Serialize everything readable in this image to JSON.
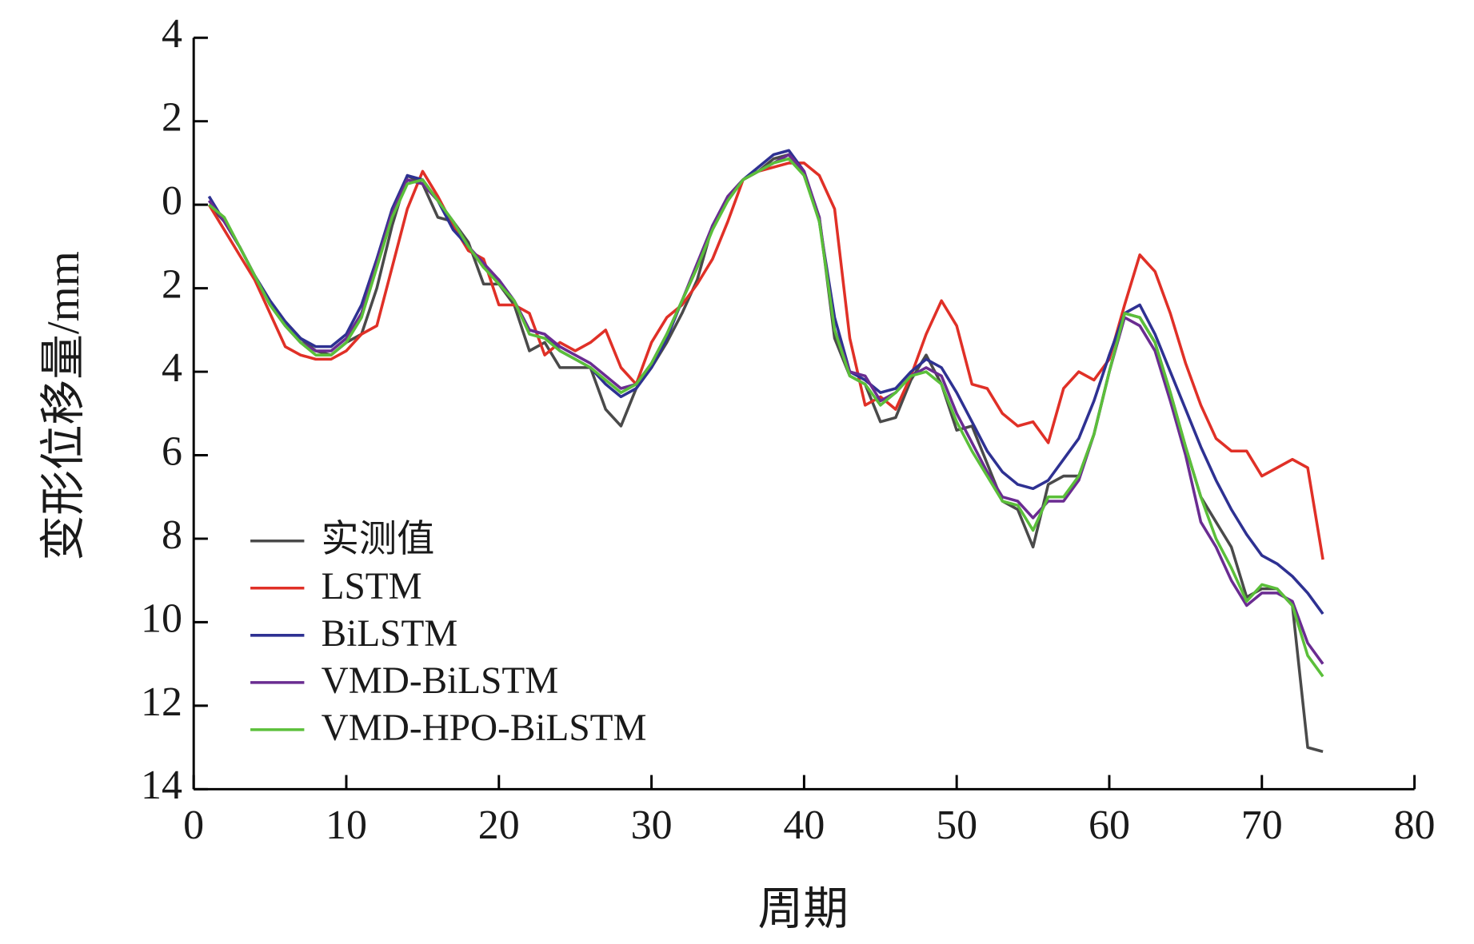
{
  "chart_data": {
    "type": "line",
    "xlabel": "周期",
    "ylabel": "变形位移量/mm",
    "x": [
      1,
      2,
      3,
      4,
      5,
      6,
      7,
      8,
      9,
      10,
      11,
      12,
      13,
      14,
      15,
      16,
      17,
      18,
      19,
      20,
      21,
      22,
      23,
      24,
      25,
      26,
      27,
      28,
      29,
      30,
      31,
      32,
      33,
      34,
      35,
      36,
      37,
      38,
      39,
      40,
      41,
      42,
      43,
      44,
      45,
      46,
      47,
      48,
      49,
      50,
      51,
      52,
      53,
      54,
      55,
      56,
      57,
      58,
      59,
      60,
      61,
      62,
      63,
      64,
      65,
      66,
      67,
      68,
      69,
      70,
      71,
      72,
      73,
      74
    ],
    "series": [
      {
        "name": "实测值",
        "color": "#4a4a4a",
        "values": [
          0,
          -0.4,
          -1.0,
          -1.7,
          -2.3,
          -2.8,
          -3.2,
          -3.5,
          -3.6,
          -3.3,
          -3.1,
          -2.0,
          -0.5,
          0.7,
          0.5,
          -0.3,
          -0.4,
          -0.9,
          -1.9,
          -1.9,
          -2.4,
          -3.5,
          -3.3,
          -3.9,
          -3.9,
          -3.9,
          -4.9,
          -5.3,
          -4.4,
          -3.9,
          -3.3,
          -2.6,
          -1.8,
          -0.5,
          0.1,
          0.6,
          0.8,
          1.1,
          1.2,
          0.7,
          -0.3,
          -3.2,
          -4.1,
          -4.3,
          -5.2,
          -5.1,
          -4.2,
          -3.6,
          -4.3,
          -5.4,
          -5.3,
          -6.2,
          -7.1,
          -7.3,
          -8.2,
          -6.7,
          -6.5,
          -6.5,
          -5.5,
          -4.0,
          -2.6,
          -2.7,
          -3.3,
          -4.5,
          -5.8,
          -7.0,
          -7.6,
          -8.2,
          -9.4,
          -9.2,
          -9.2,
          -9.6,
          -13.0,
          -13.1
        ]
      },
      {
        "name": "LSTM",
        "color": "#e03027",
        "values": [
          0,
          -0.6,
          -1.2,
          -1.8,
          -2.6,
          -3.4,
          -3.6,
          -3.7,
          -3.7,
          -3.5,
          -3.1,
          -2.9,
          -1.5,
          -0.1,
          0.8,
          0.2,
          -0.5,
          -1.1,
          -1.3,
          -2.4,
          -2.4,
          -2.6,
          -3.6,
          -3.3,
          -3.5,
          -3.3,
          -3.0,
          -3.9,
          -4.3,
          -3.3,
          -2.7,
          -2.4,
          -1.9,
          -1.3,
          -0.4,
          0.6,
          0.8,
          0.9,
          1.0,
          1.0,
          0.7,
          -0.1,
          -3.2,
          -4.8,
          -4.6,
          -4.9,
          -4.1,
          -3.1,
          -2.3,
          -2.9,
          -4.3,
          -4.4,
          -5.0,
          -5.3,
          -5.2,
          -5.7,
          -4.4,
          -4.0,
          -4.2,
          -3.7,
          -2.4,
          -1.2,
          -1.6,
          -2.6,
          -3.8,
          -4.8,
          -5.6,
          -5.9,
          -5.9,
          -6.5,
          -6.3,
          -6.1,
          -6.3,
          -8.5
        ]
      },
      {
        "name": "BiLSTM",
        "color": "#2e3192",
        "values": [
          0.2,
          -0.4,
          -1.0,
          -1.7,
          -2.3,
          -2.8,
          -3.2,
          -3.4,
          -3.4,
          -3.1,
          -2.4,
          -1.3,
          -0.1,
          0.7,
          0.6,
          0.1,
          -0.6,
          -1.0,
          -1.5,
          -1.8,
          -2.3,
          -3.0,
          -3.1,
          -3.5,
          -3.7,
          -3.9,
          -4.3,
          -4.6,
          -4.4,
          -3.9,
          -3.2,
          -2.3,
          -1.5,
          -0.5,
          0.2,
          0.6,
          0.9,
          1.2,
          1.3,
          0.8,
          -0.4,
          -2.7,
          -4.0,
          -4.2,
          -4.5,
          -4.4,
          -4.0,
          -3.7,
          -3.9,
          -4.5,
          -5.2,
          -5.9,
          -6.4,
          -6.7,
          -6.8,
          -6.6,
          -6.1,
          -5.6,
          -4.7,
          -3.6,
          -2.6,
          -2.4,
          -3.1,
          -4.0,
          -4.9,
          -5.8,
          -6.6,
          -7.3,
          -7.9,
          -8.4,
          -8.6,
          -8.9,
          -9.3,
          -9.8
        ]
      },
      {
        "name": "VMD-BiLSTM",
        "color": "#6a2c91",
        "values": [
          0.1,
          -0.4,
          -1.0,
          -1.7,
          -2.4,
          -2.9,
          -3.3,
          -3.5,
          -3.5,
          -3.2,
          -2.6,
          -1.4,
          -0.2,
          0.6,
          0.5,
          0.1,
          -0.4,
          -1.0,
          -1.4,
          -1.8,
          -2.3,
          -3.0,
          -3.1,
          -3.4,
          -3.6,
          -3.8,
          -4.1,
          -4.4,
          -4.3,
          -3.8,
          -3.1,
          -2.3,
          -1.4,
          -0.5,
          0.2,
          0.6,
          0.8,
          1.0,
          1.2,
          0.8,
          -0.3,
          -3.0,
          -4.0,
          -4.1,
          -4.7,
          -4.5,
          -4.1,
          -3.9,
          -4.1,
          -5.0,
          -5.7,
          -6.4,
          -7.0,
          -7.1,
          -7.5,
          -7.1,
          -7.1,
          -6.6,
          -5.5,
          -4.0,
          -2.7,
          -2.9,
          -3.5,
          -4.7,
          -6.0,
          -7.6,
          -8.2,
          -9.0,
          -9.6,
          -9.3,
          -9.3,
          -9.5,
          -10.5,
          -11.0
        ]
      },
      {
        "name": "VMD-HPO-BiLSTM",
        "color": "#5bbf3a",
        "values": [
          0,
          -0.3,
          -1.0,
          -1.7,
          -2.4,
          -2.9,
          -3.3,
          -3.6,
          -3.6,
          -3.3,
          -2.7,
          -1.5,
          -0.3,
          0.5,
          0.6,
          0.1,
          -0.4,
          -1.0,
          -1.5,
          -1.9,
          -2.3,
          -3.1,
          -3.2,
          -3.5,
          -3.7,
          -3.9,
          -4.2,
          -4.5,
          -4.3,
          -3.8,
          -3.1,
          -2.3,
          -1.5,
          -0.6,
          0.1,
          0.6,
          0.8,
          1.0,
          1.1,
          0.7,
          -0.4,
          -3.0,
          -4.1,
          -4.3,
          -4.8,
          -4.5,
          -4.1,
          -4.0,
          -4.3,
          -5.2,
          -5.9,
          -6.5,
          -7.1,
          -7.2,
          -7.8,
          -7.0,
          -7.0,
          -6.5,
          -5.5,
          -4.0,
          -2.6,
          -2.7,
          -3.3,
          -4.5,
          -5.8,
          -7.0,
          -8.0,
          -8.7,
          -9.5,
          -9.1,
          -9.2,
          -9.6,
          -10.8,
          -11.3
        ]
      }
    ],
    "xlim": [
      0,
      80
    ],
    "xticks": [
      0,
      10,
      20,
      30,
      40,
      50,
      60,
      70,
      80
    ],
    "ylim": [
      -14,
      4
    ],
    "yticks": [
      4,
      2,
      0,
      {
        "value": -2,
        "label": "2"
      },
      {
        "value": -4,
        "label": "4"
      },
      {
        "value": -6,
        "label": "6"
      },
      {
        "value": -8,
        "label": "8"
      },
      {
        "value": -10,
        "label": "10"
      },
      {
        "value": -12,
        "label": "12"
      },
      {
        "value": -14,
        "label": "14"
      }
    ],
    "legend": "lower left",
    "grid": false
  }
}
